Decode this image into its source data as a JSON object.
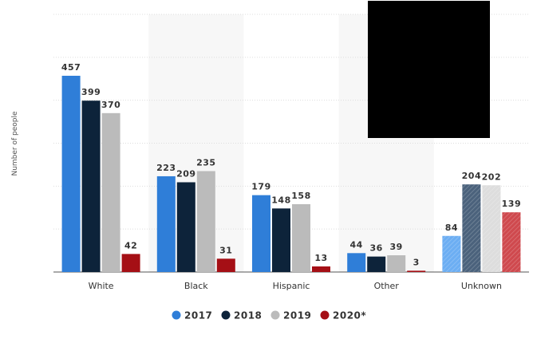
{
  "chart_data": {
    "type": "bar",
    "ylabel": "Number of people",
    "categories": [
      "White",
      "Black",
      "Hispanic",
      "Other",
      "Unknown"
    ],
    "series": [
      {
        "name": "2017",
        "color": "#2f7ed8",
        "values": [
          457,
          223,
          179,
          44,
          84
        ]
      },
      {
        "name": "2018",
        "color": "#0d233a",
        "values": [
          399,
          209,
          148,
          36,
          204
        ]
      },
      {
        "name": "2019",
        "color": "#bbbbbb",
        "values": [
          370,
          235,
          158,
          39,
          202
        ]
      },
      {
        "name": "2020*",
        "color": "#a50f15",
        "values": [
          42,
          31,
          13,
          3,
          139
        ]
      }
    ],
    "ylim": [
      0,
      600
    ],
    "grid": true,
    "legend_position": "bottom-center",
    "highlighted_categories": [
      "Black",
      "Other"
    ],
    "hatched_category": "Unknown"
  }
}
